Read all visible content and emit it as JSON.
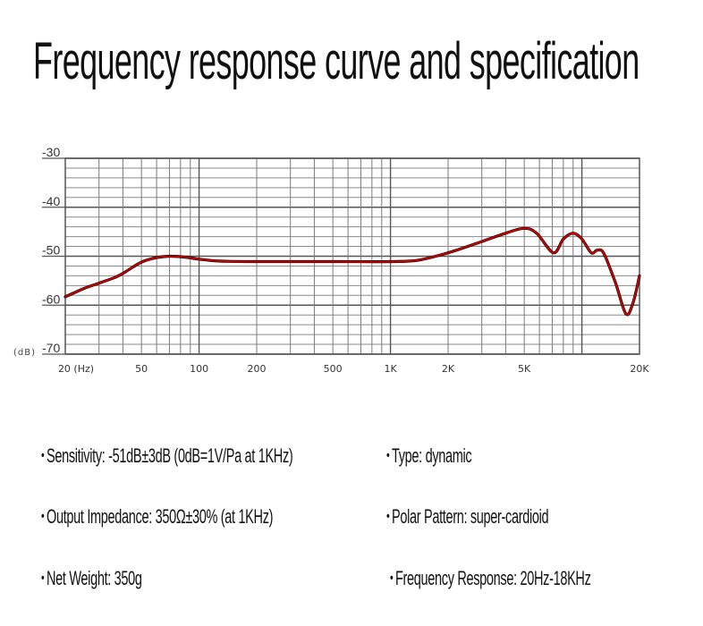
{
  "title": "Frequency response curve and specification",
  "chart_data": {
    "type": "line",
    "title": "",
    "xlabel": "(Hz)",
    "ylabel": "(dB)",
    "xscale": "log",
    "xlim": [
      20,
      20000
    ],
    "ylim": [
      -70,
      -30
    ],
    "grid": true,
    "y_ticks": [
      {
        "value": -30,
        "label": "-30"
      },
      {
        "value": -40,
        "label": "-40"
      },
      {
        "value": -50,
        "label": "-50"
      },
      {
        "value": -60,
        "label": "-60"
      },
      {
        "value": -70,
        "label": "-70"
      }
    ],
    "y_unit_label": "(dB)",
    "x_ticks": [
      {
        "value": 20,
        "label": "20 (Hz)"
      },
      {
        "value": 50,
        "label": "50"
      },
      {
        "value": 100,
        "label": "100"
      },
      {
        "value": 200,
        "label": "200"
      },
      {
        "value": 500,
        "label": "500"
      },
      {
        "value": 1000,
        "label": "1K"
      },
      {
        "value": 2000,
        "label": "2K"
      },
      {
        "value": 5000,
        "label": "5K"
      },
      {
        "value": 20000,
        "label": "20K"
      }
    ],
    "series": [
      {
        "name": "Frequency response",
        "color": "#e00000",
        "x": [
          20,
          25,
          30,
          37,
          42,
          50,
          60,
          70,
          85,
          100,
          130,
          200,
          500,
          1000,
          1400,
          2000,
          3000,
          4000,
          5000,
          5800,
          7100,
          8000,
          9000,
          10000,
          11200,
          12000,
          13000,
          15000,
          17000,
          18500,
          20000
        ],
        "y": [
          -58.3,
          -56.6,
          -55.5,
          -54.2,
          -53.0,
          -51.2,
          -50.3,
          -50.0,
          -50.2,
          -50.6,
          -51.0,
          -51.1,
          -51.1,
          -51.1,
          -50.8,
          -49.3,
          -47.0,
          -45.3,
          -44.3,
          -45.3,
          -49.3,
          -46.5,
          -45.3,
          -46.5,
          -49.3,
          -48.8,
          -49.4,
          -55.5,
          -61.8,
          -59.5,
          -54.0
        ]
      }
    ]
  },
  "specs": {
    "left": [
      "Sensitivity: -51dB±3dB (0dB=1V/Pa at 1KHz)",
      "Output Impedance: 350Ω±30% (at 1KHz)",
      "Net Weight: 350g"
    ],
    "right": [
      "Type: dynamic",
      "Polar Pattern: super-cardioid",
      "Frequency Response: 20Hz-18KHz"
    ],
    "bullet": "•"
  }
}
